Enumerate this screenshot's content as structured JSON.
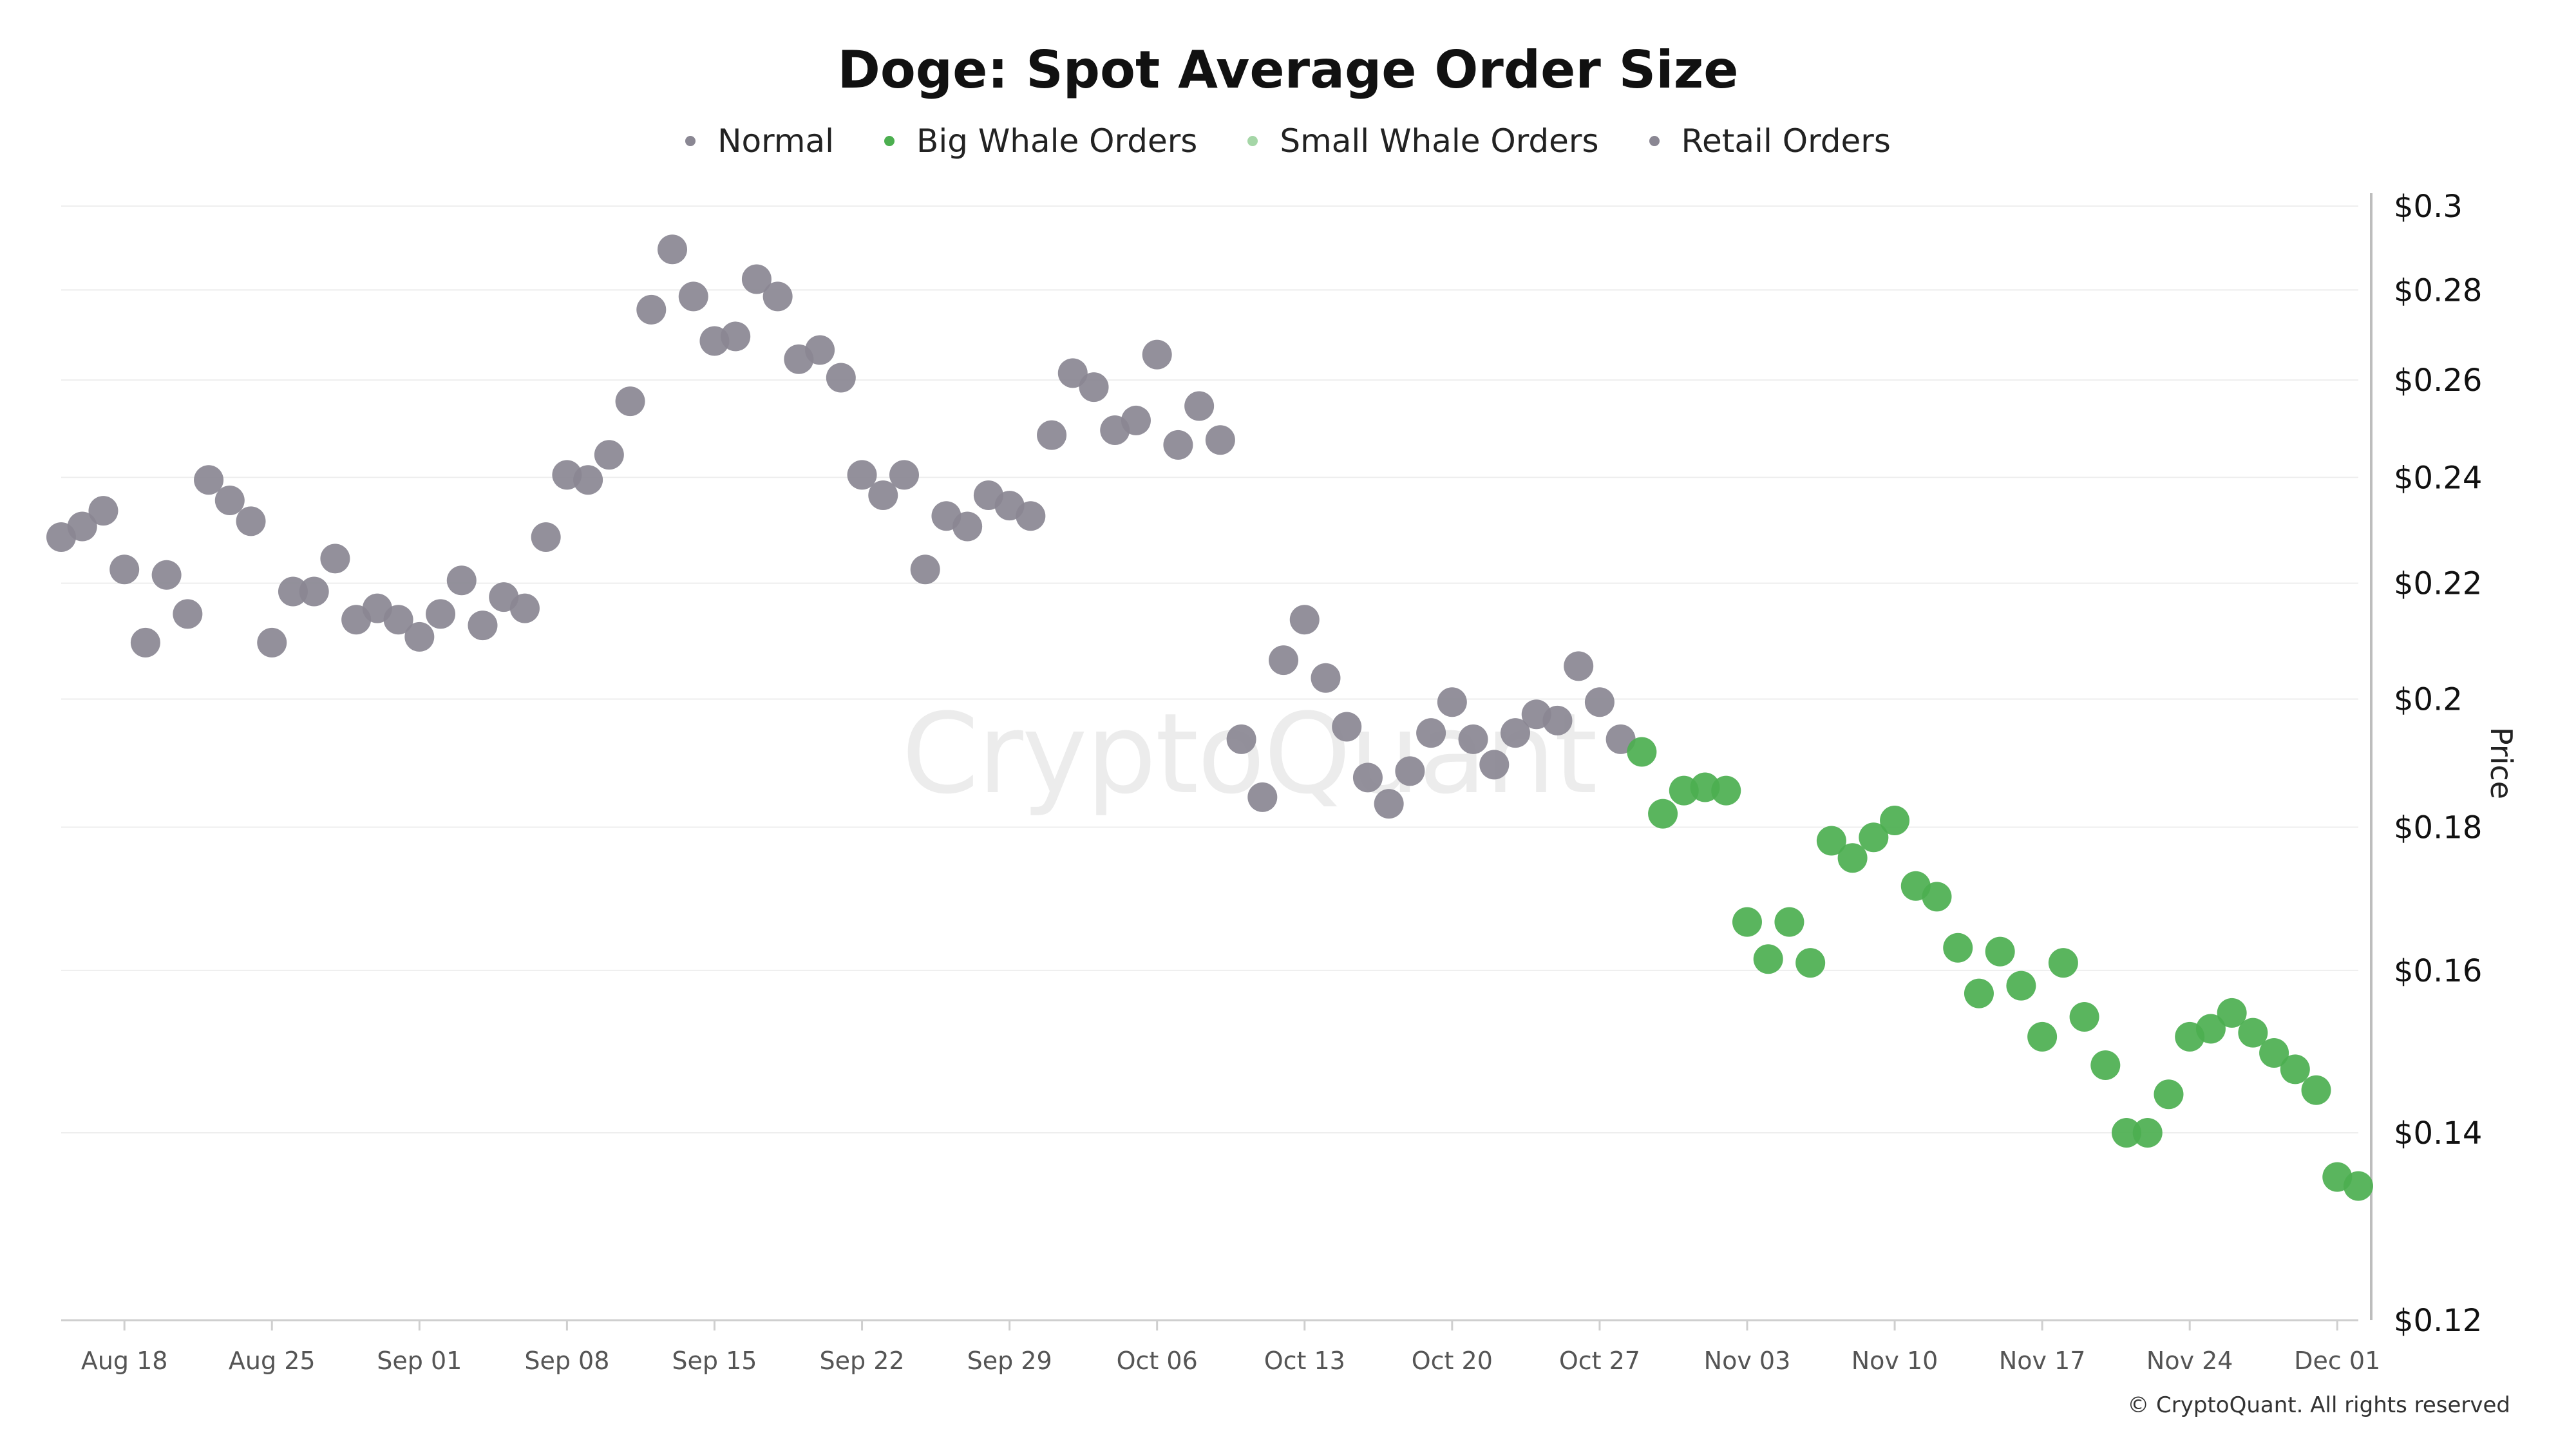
{
  "chart_data": {
    "type": "scatter",
    "title": "Doge: Spot Average Order Size",
    "ylabel": "Price",
    "xlabel": "",
    "y_scale": "log",
    "ylim": [
      0.12,
      0.3
    ],
    "y_ticks": [
      0.12,
      0.14,
      0.16,
      0.18,
      0.2,
      0.22,
      0.24,
      0.26,
      0.28,
      0.3
    ],
    "y_tick_labels": [
      "$0.12",
      "$0.14",
      "$0.16",
      "$0.18",
      "$0.2",
      "$0.22",
      "$0.24",
      "$0.26",
      "$0.28",
      "$0.3"
    ],
    "x_ticks": [
      "2024-08-18",
      "2024-08-25",
      "2024-09-01",
      "2024-09-08",
      "2024-09-15",
      "2024-09-22",
      "2024-09-29",
      "2024-10-06",
      "2024-10-13",
      "2024-10-20",
      "2024-10-27",
      "2024-11-03",
      "2024-11-10",
      "2024-11-17",
      "2024-11-24",
      "2024-12-01"
    ],
    "x_tick_labels": [
      "Aug 18",
      "Aug 25",
      "Sep 01",
      "Sep 08",
      "Sep 15",
      "Sep 22",
      "Sep 29",
      "Oct 06",
      "Oct 13",
      "Oct 20",
      "Oct 27",
      "Nov 03",
      "Nov 10",
      "Nov 17",
      "Nov 24",
      "Dec 01"
    ],
    "xlim": [
      "2024-08-15",
      "2024-12-02"
    ],
    "grid": true,
    "legend_position": "top-center",
    "legend": [
      {
        "name": "Normal",
        "color": "#8a8793"
      },
      {
        "name": "Big Whale Orders",
        "color": "#4caf50"
      },
      {
        "name": "Small Whale Orders",
        "color": "#a5d6a7"
      },
      {
        "name": "Retail Orders",
        "color": "#8a8793"
      }
    ],
    "series": [
      {
        "name": "Normal",
        "color": "#8a8793",
        "points": [
          [
            "2024-08-15",
            0.2285
          ],
          [
            "2024-08-16",
            0.2305
          ],
          [
            "2024-08-17",
            0.2335
          ],
          [
            "2024-08-18",
            0.2225
          ],
          [
            "2024-08-19",
            0.2095
          ],
          [
            "2024-08-20",
            0.2215
          ],
          [
            "2024-08-21",
            0.2145
          ],
          [
            "2024-08-22",
            0.2395
          ],
          [
            "2024-08-23",
            0.2355
          ],
          [
            "2024-08-24",
            0.2315
          ],
          [
            "2024-08-25",
            0.2095
          ],
          [
            "2024-08-26",
            0.2185
          ],
          [
            "2024-08-27",
            0.2185
          ],
          [
            "2024-08-28",
            0.2245
          ],
          [
            "2024-08-29",
            0.2135
          ],
          [
            "2024-08-30",
            0.2155
          ],
          [
            "2024-08-31",
            0.2135
          ],
          [
            "2024-09-01",
            0.2105
          ],
          [
            "2024-09-02",
            0.2145
          ],
          [
            "2024-09-03",
            0.2205
          ],
          [
            "2024-09-04",
            0.2125
          ],
          [
            "2024-09-05",
            0.2175
          ],
          [
            "2024-09-06",
            0.2155
          ],
          [
            "2024-09-07",
            0.2285
          ],
          [
            "2024-09-08",
            0.2405
          ],
          [
            "2024-09-09",
            0.2395
          ],
          [
            "2024-09-10",
            0.2445
          ],
          [
            "2024-09-11",
            0.2555
          ],
          [
            "2024-09-12",
            0.2755
          ],
          [
            "2024-09-13",
            0.2895
          ],
          [
            "2024-09-14",
            0.2785
          ],
          [
            "2024-09-15",
            0.2685
          ],
          [
            "2024-09-16",
            0.2695
          ],
          [
            "2024-09-17",
            0.2825
          ],
          [
            "2024-09-18",
            0.2785
          ],
          [
            "2024-09-19",
            0.2645
          ],
          [
            "2024-09-20",
            0.2665
          ],
          [
            "2024-09-21",
            0.2605
          ],
          [
            "2024-09-22",
            0.2405
          ],
          [
            "2024-09-23",
            0.2365
          ],
          [
            "2024-09-24",
            0.2405
          ],
          [
            "2024-09-25",
            0.2225
          ],
          [
            "2024-09-26",
            0.2325
          ],
          [
            "2024-09-27",
            0.2305
          ],
          [
            "2024-09-28",
            0.2365
          ],
          [
            "2024-09-29",
            0.2345
          ],
          [
            "2024-09-30",
            0.2325
          ],
          [
            "2024-10-01",
            0.2485
          ],
          [
            "2024-10-02",
            0.2615
          ],
          [
            "2024-10-03",
            0.2585
          ],
          [
            "2024-10-04",
            0.2495
          ],
          [
            "2024-10-05",
            0.2515
          ],
          [
            "2024-10-06",
            0.2655
          ],
          [
            "2024-10-07",
            0.2465
          ],
          [
            "2024-10-08",
            0.2545
          ],
          [
            "2024-10-09",
            0.2475
          ],
          [
            "2024-10-10",
            0.1935
          ],
          [
            "2024-10-11",
            0.1845
          ],
          [
            "2024-10-12",
            0.2065
          ],
          [
            "2024-10-13",
            0.2135
          ],
          [
            "2024-10-14",
            0.2035
          ],
          [
            "2024-10-15",
            0.1955
          ],
          [
            "2024-10-16",
            0.1875
          ],
          [
            "2024-10-17",
            0.1835
          ],
          [
            "2024-10-18",
            0.1885
          ],
          [
            "2024-10-19",
            0.1945
          ],
          [
            "2024-10-20",
            0.1995
          ],
          [
            "2024-10-21",
            0.1935
          ],
          [
            "2024-10-22",
            0.1895
          ],
          [
            "2024-10-23",
            0.1945
          ],
          [
            "2024-10-24",
            0.1975
          ],
          [
            "2024-10-25",
            0.1965
          ],
          [
            "2024-10-26",
            0.2055
          ],
          [
            "2024-10-27",
            0.1995
          ],
          [
            "2024-10-28",
            0.1935
          ]
        ]
      },
      {
        "name": "Big Whale Orders",
        "color": "#4caf50",
        "points": [
          [
            "2024-10-29",
            0.1915
          ],
          [
            "2024-10-30",
            0.182
          ],
          [
            "2024-10-31",
            0.1855
          ],
          [
            "2024-11-01",
            0.186
          ],
          [
            "2024-11-02",
            0.1855
          ],
          [
            "2024-11-03",
            0.1665
          ],
          [
            "2024-11-04",
            0.1615
          ],
          [
            "2024-11-05",
            0.1665
          ],
          [
            "2024-11-06",
            0.161
          ],
          [
            "2024-11-07",
            0.178
          ],
          [
            "2024-11-08",
            0.1755
          ],
          [
            "2024-11-09",
            0.1785
          ],
          [
            "2024-11-10",
            0.181
          ],
          [
            "2024-11-11",
            0.1715
          ],
          [
            "2024-11-12",
            0.17
          ],
          [
            "2024-11-13",
            0.163
          ],
          [
            "2024-11-14",
            0.157
          ],
          [
            "2024-11-15",
            0.1625
          ],
          [
            "2024-11-16",
            0.158
          ],
          [
            "2024-11-17",
            0.1515
          ],
          [
            "2024-11-18",
            0.161
          ],
          [
            "2024-11-19",
            0.154
          ],
          [
            "2024-11-20",
            0.148
          ],
          [
            "2024-11-21",
            0.14
          ],
          [
            "2024-11-22",
            0.14
          ],
          [
            "2024-11-23",
            0.1445
          ],
          [
            "2024-11-24",
            0.1515
          ],
          [
            "2024-11-25",
            0.1525
          ],
          [
            "2024-11-26",
            0.1545
          ],
          [
            "2024-11-27",
            0.152
          ],
          [
            "2024-11-28",
            0.1495
          ],
          [
            "2024-11-29",
            0.1475
          ],
          [
            "2024-11-30",
            0.145
          ],
          [
            "2024-12-01",
            0.135
          ],
          [
            "2024-12-02",
            0.134
          ]
        ]
      }
    ]
  },
  "footer": {
    "copyright": "© CryptoQuant. All rights reserved"
  },
  "watermark": {
    "text": "CryptoQuant"
  }
}
